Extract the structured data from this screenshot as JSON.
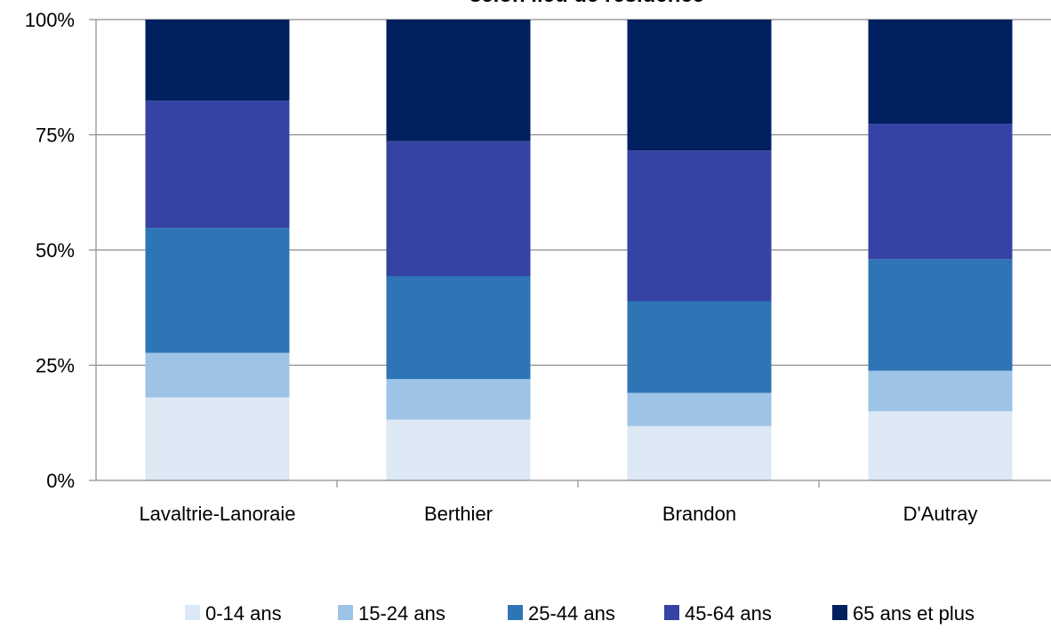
{
  "chart_data": {
    "type": "bar",
    "stacked": true,
    "percent": true,
    "title": "selon lieu de résidence",
    "categories": [
      "Lavaltrie-Lanoraie",
      "Berthier",
      "Brandon",
      "D'Autray"
    ],
    "series": [
      {
        "name": "0-14 ans",
        "color": "#DDE8F5",
        "values": [
          18.0,
          13.2,
          11.8,
          15.0
        ]
      },
      {
        "name": "15-24 ans",
        "color": "#9DC3E6",
        "values": [
          9.7,
          8.8,
          7.2,
          8.8
        ]
      },
      {
        "name": "25-44 ans",
        "color": "#2E75B6",
        "values": [
          27.1,
          22.3,
          19.9,
          24.2
        ]
      },
      {
        "name": "45-64 ans",
        "color": "#3543A5",
        "values": [
          27.6,
          29.3,
          32.7,
          29.4
        ]
      },
      {
        "name": "65 ans et plus",
        "color": "#00205F",
        "values": [
          17.6,
          26.4,
          28.4,
          22.6
        ]
      }
    ],
    "ylim": [
      0,
      100
    ],
    "yticks": [
      0,
      25,
      50,
      75,
      100
    ],
    "ytick_labels": [
      "0%",
      "25%",
      "50%",
      "75%",
      "100%"
    ],
    "grid": true,
    "legend": "bottom"
  }
}
